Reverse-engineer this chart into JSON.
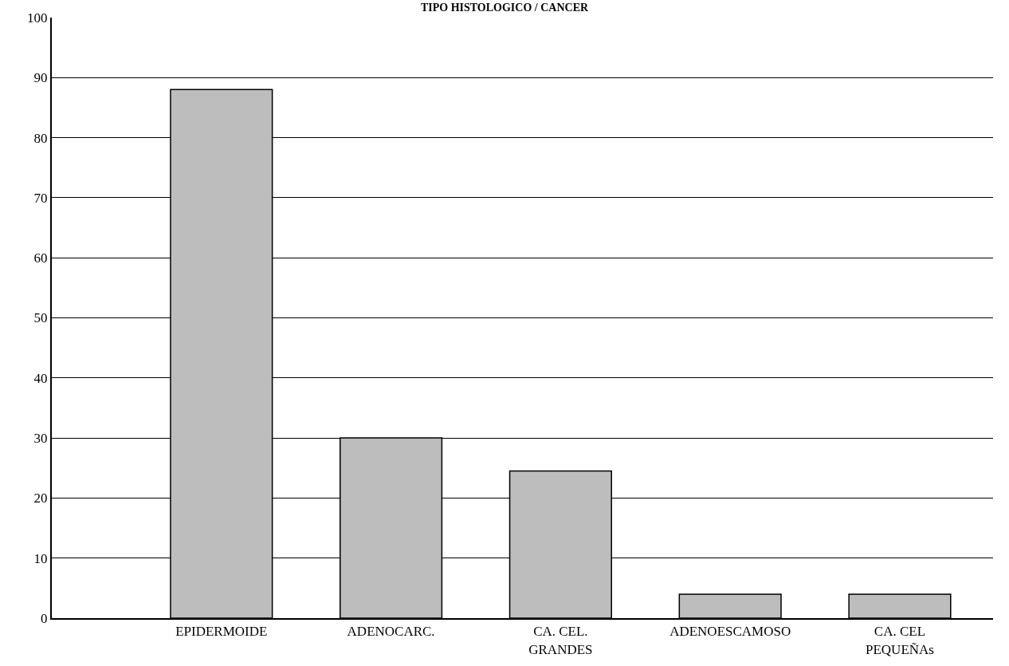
{
  "chart_data": {
    "type": "bar",
    "title": "TIPO HISTOLOGICO / CANCER",
    "categories": [
      "EPIDERMOIDE",
      "ADENOCARC.",
      "CA. CEL.\nGRANDES",
      "ADENOESCAMOSO",
      "CA. CEL\nPEQUEÑAs"
    ],
    "values": [
      88,
      30,
      24.5,
      4,
      4
    ],
    "color": "#bdbdbd",
    "ylim": [
      0,
      100
    ],
    "yticks": [
      0,
      10,
      20,
      30,
      40,
      50,
      60,
      70,
      80,
      90,
      100
    ],
    "grid": "y"
  }
}
